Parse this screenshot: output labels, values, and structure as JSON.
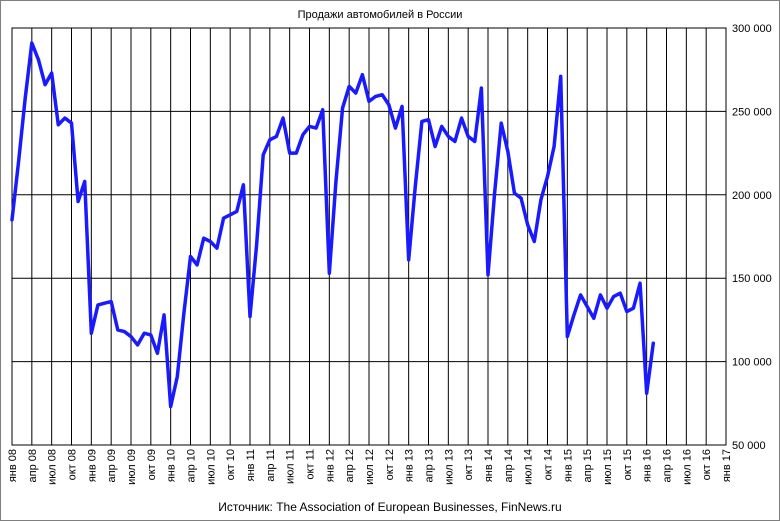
{
  "chart_data": {
    "type": "line",
    "title": "Продажи  автомобилей  в России",
    "source": "Источник: The Association of European Businesses, FinNews.ru",
    "ylim": [
      50000,
      300000
    ],
    "y_ticks": [
      "50 000",
      "100 000",
      "150 000",
      "200 000",
      "250 000",
      "300 000"
    ],
    "y_tick_values": [
      50000,
      100000,
      150000,
      200000,
      250000,
      300000
    ],
    "y_axis_position": "right",
    "grid": true,
    "line_color": "#1a1aff",
    "x_tick_labels": [
      "янв 08",
      "апр 08",
      "июл 08",
      "окт 08",
      "янв 09",
      "апр 09",
      "июл 09",
      "окт 09",
      "янв 10",
      "апр 10",
      "июл 10",
      "окт 10",
      "янв 11",
      "апр 11",
      "июл 11",
      "окт 11",
      "янв 12",
      "апр 12",
      "июл 12",
      "окт 12",
      "янв 13",
      "апр 13",
      "июл 13",
      "окт 13",
      "янв 14",
      "апр 14",
      "июл 14",
      "окт 14",
      "янв 15",
      "апр 15",
      "июл 15",
      "окт 15",
      "янв 16",
      "апр 16",
      "июл 16",
      "окт 16",
      "янв 17"
    ],
    "x_start": "2008-01",
    "values": [
      185000,
      220000,
      258000,
      291000,
      281000,
      266000,
      273000,
      242000,
      246000,
      243000,
      196000,
      208000,
      117000,
      134000,
      135000,
      136000,
      119000,
      118000,
      115000,
      110000,
      117000,
      116000,
      105000,
      128000,
      73000,
      91000,
      129000,
      163000,
      158000,
      174000,
      172000,
      168000,
      186000,
      188000,
      190000,
      206000,
      127000,
      170000,
      224000,
      233000,
      235000,
      246000,
      225000,
      225000,
      236000,
      241000,
      240000,
      251000,
      153000,
      208000,
      252000,
      265000,
      261000,
      272000,
      256000,
      259000,
      260000,
      254000,
      240000,
      253000,
      161000,
      205000,
      244000,
      245000,
      229000,
      241000,
      235000,
      232000,
      246000,
      235000,
      232000,
      264000,
      152000,
      201000,
      243000,
      226000,
      201000,
      198000,
      182000,
      172000,
      197000,
      211000,
      229000,
      271000,
      115000,
      128000,
      140000,
      133000,
      126000,
      140000,
      132000,
      139000,
      141000,
      130000,
      132000,
      147000,
      81000,
      111000
    ]
  }
}
